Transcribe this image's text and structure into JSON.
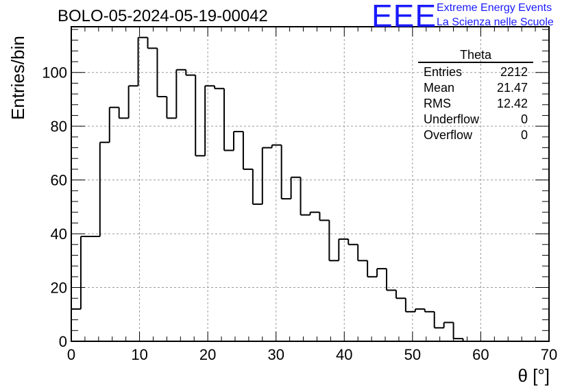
{
  "header": {
    "title": "BOLO-05-2024-05-19-00042",
    "logo_text": "EEE",
    "logo_line1": "Extreme Energy Events",
    "logo_line2": "La Scienza nelle Scuole",
    "logo_color": "#1a1aff"
  },
  "stats_box": {
    "name": "Theta",
    "rows": [
      {
        "label": "Entries",
        "value": "2212"
      },
      {
        "label": "Mean",
        "value": "21.47"
      },
      {
        "label": "RMS",
        "value": "12.42"
      },
      {
        "label": "Underflow",
        "value": "0"
      },
      {
        "label": "Overflow",
        "value": "0"
      }
    ]
  },
  "chart_data": {
    "type": "histogram",
    "title": "BOLO-05-2024-05-19-00042",
    "xlabel": "θ [°]",
    "ylabel": "Entries/bin",
    "xlim": [
      0,
      70
    ],
    "ylim": [
      0,
      117
    ],
    "grid": true,
    "bin_width": 1.4,
    "bin_start": 0,
    "values": [
      12,
      39,
      39,
      74,
      87,
      83,
      95,
      113,
      109,
      91,
      83,
      101,
      99,
      69,
      95,
      94,
      71,
      78,
      64,
      51,
      72,
      73,
      53,
      61,
      47,
      48,
      45,
      30,
      38,
      36,
      30,
      24,
      27,
      19,
      16,
      11,
      12,
      11,
      5,
      7,
      1,
      0,
      0,
      0,
      0,
      0,
      0,
      0,
      0,
      0
    ],
    "x_ticks": [
      "0",
      "10",
      "20",
      "30",
      "40",
      "50",
      "60",
      "70"
    ],
    "y_ticks": [
      "0",
      "20",
      "40",
      "60",
      "80",
      "100"
    ],
    "line_color": "#000000",
    "grid_color": "#9a9a9a"
  }
}
